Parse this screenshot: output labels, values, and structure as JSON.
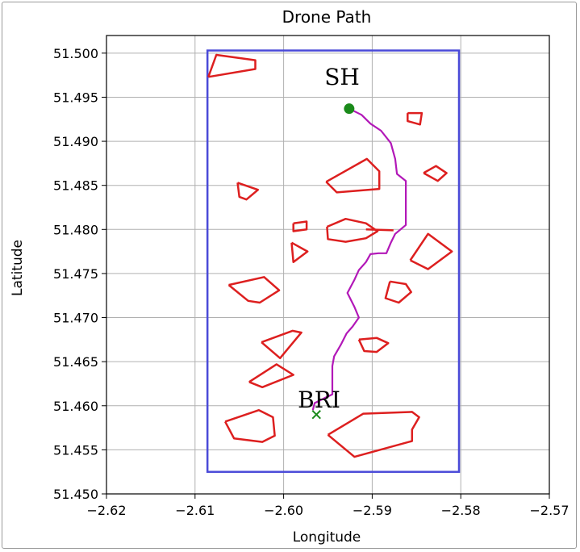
{
  "chart_data": {
    "type": "line",
    "title": "Drone Path",
    "xlabel": "Longitude",
    "ylabel": "Latitude",
    "xlim": [
      -2.62,
      -2.57
    ],
    "ylim": [
      51.45,
      51.502
    ],
    "xticks": [
      -2.62,
      -2.61,
      -2.6,
      -2.59,
      -2.58,
      -2.57
    ],
    "xtick_labels": [
      "−2.62",
      "−2.61",
      "−2.60",
      "−2.59",
      "−2.58",
      "−2.57"
    ],
    "yticks": [
      51.45,
      51.455,
      51.46,
      51.465,
      51.47,
      51.475,
      51.48,
      51.485,
      51.49,
      51.495,
      51.5
    ],
    "ytick_labels": [
      "51.450",
      "51.455",
      "51.460",
      "51.465",
      "51.470",
      "51.475",
      "51.480",
      "51.485",
      "51.490",
      "51.495",
      "51.500"
    ],
    "grid": true,
    "colors": {
      "boundary": "#4a4ad8",
      "obstacle": "#dd1f1f",
      "path": "#b218b8",
      "start": "#1a8a1a"
    },
    "boundary": {
      "x": [
        -2.6086,
        -2.5802
      ],
      "y": [
        51.4525,
        51.5003
      ]
    },
    "annotations": [
      {
        "text": "SH",
        "x": -2.5934,
        "y": 51.4964
      },
      {
        "text": "BRI",
        "x": -2.596,
        "y": 51.4598
      }
    ],
    "start_marker": {
      "x": -2.5926,
      "y": 51.4937
    },
    "end_marker": {
      "x": -2.5963,
      "y": 51.459
    },
    "path": [
      [
        -2.5926,
        51.4937
      ],
      [
        -2.5912,
        51.493
      ],
      [
        -2.5902,
        51.492
      ],
      [
        -2.589,
        51.4912
      ],
      [
        -2.5879,
        51.4898
      ],
      [
        -2.5874,
        51.488
      ],
      [
        -2.5872,
        51.4863
      ],
      [
        -2.5862,
        51.4855
      ],
      [
        -2.5862,
        51.483
      ],
      [
        -2.5862,
        51.4805
      ],
      [
        -2.5874,
        51.4795
      ],
      [
        -2.5879,
        51.4785
      ],
      [
        -2.5884,
        51.4773
      ],
      [
        -2.5893,
        51.4773
      ],
      [
        -2.5902,
        51.4772
      ],
      [
        -2.5907,
        51.4763
      ],
      [
        -2.5915,
        51.4754
      ],
      [
        -2.592,
        51.4743
      ],
      [
        -2.5928,
        51.4728
      ],
      [
        -2.592,
        51.4712
      ],
      [
        -2.5915,
        51.47
      ],
      [
        -2.5922,
        51.469
      ],
      [
        -2.5929,
        51.4682
      ],
      [
        -2.5935,
        51.467
      ],
      [
        -2.5943,
        51.4656
      ],
      [
        -2.5945,
        51.4645
      ],
      [
        -2.5945,
        51.4628
      ],
      [
        -2.5945,
        51.4613
      ],
      [
        -2.5955,
        51.4608
      ],
      [
        -2.5965,
        51.4603
      ],
      [
        -2.5967,
        51.4595
      ]
    ],
    "obstacles": [
      [
        [
          -2.6085,
          51.4973
        ],
        [
          -2.6076,
          51.4998
        ],
        [
          -2.6032,
          51.4992
        ],
        [
          -2.6032,
          51.4982
        ],
        [
          -2.6085,
          51.4973
        ]
      ],
      [
        [
          -2.586,
          51.4932
        ],
        [
          -2.5844,
          51.4932
        ],
        [
          -2.5846,
          51.4919
        ],
        [
          -2.586,
          51.4923
        ],
        [
          -2.586,
          51.4932
        ]
      ],
      [
        [
          -2.5952,
          51.4854
        ],
        [
          -2.5906,
          51.488
        ],
        [
          -2.5892,
          51.4866
        ],
        [
          -2.5892,
          51.4846
        ],
        [
          -2.594,
          51.4842
        ],
        [
          -2.5952,
          51.4854
        ]
      ],
      [
        [
          -2.5842,
          51.4864
        ],
        [
          -2.5828,
          51.4872
        ],
        [
          -2.5816,
          51.4864
        ],
        [
          -2.5826,
          51.4855
        ],
        [
          -2.5842,
          51.4864
        ]
      ],
      [
        [
          -2.6052,
          51.4853
        ],
        [
          -2.605,
          51.4837
        ],
        [
          -2.6042,
          51.4834
        ],
        [
          -2.6029,
          51.4845
        ],
        [
          -2.6052,
          51.4853
        ]
      ],
      [
        [
          -2.5989,
          51.4807
        ],
        [
          -2.5974,
          51.4809
        ],
        [
          -2.5974,
          51.48
        ],
        [
          -2.5989,
          51.4798
        ],
        [
          -2.5989,
          51.4807
        ]
      ],
      [
        [
          -2.5951,
          51.4803
        ],
        [
          -2.593,
          51.4812
        ],
        [
          -2.5907,
          51.4807
        ],
        [
          -2.5894,
          51.4798
        ],
        [
          -2.5907,
          51.479
        ],
        [
          -2.593,
          51.4786
        ],
        [
          -2.595,
          51.4789
        ],
        [
          -2.5951,
          51.4803
        ]
      ],
      [
        [
          -2.5907,
          51.48
        ],
        [
          -2.5876,
          51.4799
        ]
      ],
      [
        [
          -2.5991,
          51.4785
        ],
        [
          -2.5973,
          51.4775
        ],
        [
          -2.5989,
          51.4763
        ],
        [
          -2.5991,
          51.4785
        ]
      ],
      [
        [
          -2.5857,
          51.4765
        ],
        [
          -2.5837,
          51.4795
        ],
        [
          -2.581,
          51.4775
        ],
        [
          -2.5837,
          51.4755
        ],
        [
          -2.5857,
          51.4765
        ]
      ],
      [
        [
          -2.6062,
          51.4737
        ],
        [
          -2.6022,
          51.4746
        ],
        [
          -2.6005,
          51.4731
        ],
        [
          -2.6027,
          51.4717
        ],
        [
          -2.604,
          51.4719
        ],
        [
          -2.6062,
          51.4737
        ]
      ],
      [
        [
          -2.588,
          51.4741
        ],
        [
          -2.5862,
          51.4738
        ],
        [
          -2.5856,
          51.4729
        ],
        [
          -2.587,
          51.4717
        ],
        [
          -2.5885,
          51.4722
        ],
        [
          -2.588,
          51.4741
        ]
      ],
      [
        [
          -2.6025,
          51.4672
        ],
        [
          -2.599,
          51.4685
        ],
        [
          -2.598,
          51.4683
        ],
        [
          -2.6004,
          51.4654
        ],
        [
          -2.6025,
          51.4672
        ]
      ],
      [
        [
          -2.5915,
          51.4675
        ],
        [
          -2.5895,
          51.4677
        ],
        [
          -2.5882,
          51.4671
        ],
        [
          -2.5895,
          51.4661
        ],
        [
          -2.5909,
          51.4662
        ],
        [
          -2.5915,
          51.4675
        ]
      ],
      [
        [
          -2.6039,
          51.4627
        ],
        [
          -2.6008,
          51.4647
        ],
        [
          -2.5989,
          51.4635
        ],
        [
          -2.6024,
          51.4621
        ],
        [
          -2.6039,
          51.4627
        ]
      ],
      [
        [
          -2.6066,
          51.4582
        ],
        [
          -2.6028,
          51.4595
        ],
        [
          -2.6012,
          51.4587
        ],
        [
          -2.601,
          51.4566
        ],
        [
          -2.6024,
          51.4559
        ],
        [
          -2.6056,
          51.4563
        ],
        [
          -2.6066,
          51.4582
        ]
      ],
      [
        [
          -2.595,
          51.4567
        ],
        [
          -2.591,
          51.4591
        ],
        [
          -2.5855,
          51.4593
        ],
        [
          -2.5847,
          51.4587
        ],
        [
          -2.5855,
          51.4573
        ],
        [
          -2.5855,
          51.456
        ],
        [
          -2.592,
          51.4542
        ],
        [
          -2.595,
          51.4567
        ]
      ]
    ]
  }
}
